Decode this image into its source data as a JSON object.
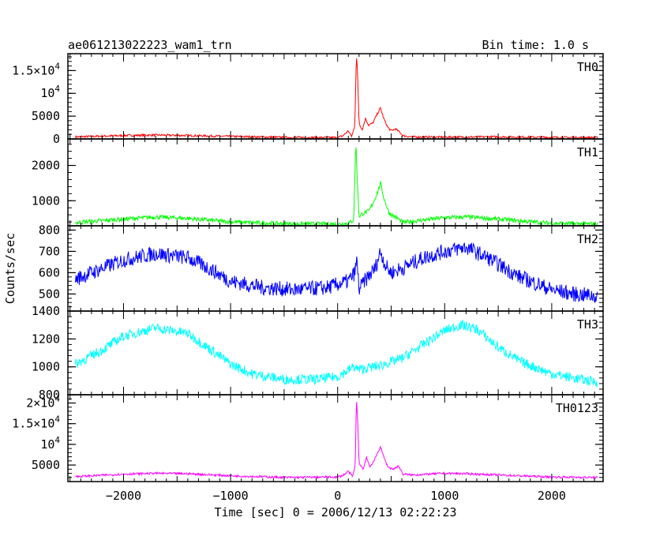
{
  "header": {
    "title": "ae061213022223_wam1_trn",
    "bin_time": "Bin time: 1.0 s"
  },
  "chart_data": {
    "type": "line",
    "xlabel": "Time [sec] 0 = 2006/12/13 02:22:23",
    "ylabel": "Counts/sec",
    "xlim": [
      -2520,
      2480
    ],
    "x_ticks": [
      -2000,
      -1000,
      0,
      1000,
      2000
    ],
    "x_tick_labels": [
      "−2000",
      "−1000",
      "0",
      "1000",
      "2000"
    ],
    "grid": false,
    "panels": [
      {
        "label": "TH0",
        "color": "#ff0000",
        "ylim": [
          0,
          18700
        ],
        "y_ticks": [
          0,
          5000,
          10000,
          15000
        ],
        "y_tick_labels": [
          {
            "mant": "0"
          },
          {
            "mant": "5000"
          },
          {
            "mant": "10",
            "exp": "4"
          },
          {
            "mant": "1.5×10",
            "exp": "4"
          }
        ],
        "points": [
          [
            -2450,
            450
          ],
          [
            -2000,
            750
          ],
          [
            -1700,
            850
          ],
          [
            -1400,
            750
          ],
          [
            -1000,
            550
          ],
          [
            -500,
            350
          ],
          [
            0,
            300
          ],
          [
            50,
            700
          ],
          [
            100,
            1800
          ],
          [
            130,
            500
          ],
          [
            160,
            2800
          ],
          [
            175,
            18500
          ],
          [
            185,
            15000
          ],
          [
            200,
            3500
          ],
          [
            230,
            2000
          ],
          [
            260,
            4500
          ],
          [
            290,
            3000
          ],
          [
            330,
            3500
          ],
          [
            370,
            5500
          ],
          [
            400,
            6800
          ],
          [
            430,
            4500
          ],
          [
            470,
            2500
          ],
          [
            500,
            1800
          ],
          [
            540,
            2200
          ],
          [
            580,
            1500
          ],
          [
            610,
            700
          ],
          [
            700,
            450
          ],
          [
            1000,
            400
          ],
          [
            1500,
            450
          ],
          [
            2000,
            350
          ],
          [
            2430,
            300
          ]
        ]
      },
      {
        "label": "TH1",
        "color": "#00ff00",
        "ylim": [
          290,
          2750
        ],
        "y_ticks": [
          1000,
          2000
        ],
        "y_tick_labels": [
          {
            "mant": "1000"
          },
          {
            "mant": "2000"
          }
        ],
        "points": [
          [
            -2450,
            380
          ],
          [
            -2000,
            480
          ],
          [
            -1700,
            540
          ],
          [
            -1400,
            500
          ],
          [
            -1000,
            400
          ],
          [
            -500,
            350
          ],
          [
            0,
            340
          ],
          [
            100,
            360
          ],
          [
            150,
            450
          ],
          [
            170,
            2700
          ],
          [
            180,
            1800
          ],
          [
            200,
            550
          ],
          [
            240,
            650
          ],
          [
            290,
            700
          ],
          [
            340,
            1000
          ],
          [
            380,
            1300
          ],
          [
            400,
            1500
          ],
          [
            430,
            1100
          ],
          [
            480,
            650
          ],
          [
            560,
            500
          ],
          [
            610,
            380
          ],
          [
            700,
            420
          ],
          [
            1000,
            520
          ],
          [
            1200,
            540
          ],
          [
            1500,
            480
          ],
          [
            2000,
            360
          ],
          [
            2430,
            340
          ]
        ]
      },
      {
        "label": "TH2",
        "color": "#0000ff",
        "ylim": [
          420,
          820
        ],
        "y_ticks": [
          500,
          600,
          700,
          800
        ],
        "y_tick_labels": [
          {
            "mant": "500"
          },
          {
            "mant": "600"
          },
          {
            "mant": "700"
          },
          {
            "mant": "800"
          }
        ],
        "points": [
          [
            -2450,
            570
          ],
          [
            -2200,
            620
          ],
          [
            -2000,
            660
          ],
          [
            -1700,
            690
          ],
          [
            -1400,
            670
          ],
          [
            -1200,
            620
          ],
          [
            -1000,
            560
          ],
          [
            -700,
            530
          ],
          [
            -400,
            520
          ],
          [
            -100,
            530
          ],
          [
            100,
            560
          ],
          [
            160,
            600
          ],
          [
            180,
            660
          ],
          [
            200,
            520
          ],
          [
            250,
            560
          ],
          [
            300,
            590
          ],
          [
            350,
            620
          ],
          [
            400,
            700
          ],
          [
            450,
            630
          ],
          [
            500,
            600
          ],
          [
            600,
            620
          ],
          [
            800,
            670
          ],
          [
            1000,
            700
          ],
          [
            1200,
            720
          ],
          [
            1400,
            670
          ],
          [
            1700,
            580
          ],
          [
            2000,
            520
          ],
          [
            2200,
            500
          ],
          [
            2430,
            490
          ]
        ]
      },
      {
        "label": "TH3",
        "color": "#00ffff",
        "ylim": [
          800,
          1400
        ],
        "y_ticks": [
          800,
          1000,
          1200,
          1400
        ],
        "y_tick_labels": [
          {
            "mant": "800"
          },
          {
            "mant": "1000"
          },
          {
            "mant": "1200"
          },
          {
            "mant": "1400"
          }
        ],
        "points": [
          [
            -2450,
            1020
          ],
          [
            -2200,
            1120
          ],
          [
            -2000,
            1220
          ],
          [
            -1700,
            1280
          ],
          [
            -1400,
            1240
          ],
          [
            -1200,
            1130
          ],
          [
            -1000,
            1020
          ],
          [
            -800,
            950
          ],
          [
            -500,
            910
          ],
          [
            -200,
            910
          ],
          [
            0,
            930
          ],
          [
            150,
            1000
          ],
          [
            200,
            980
          ],
          [
            400,
            1010
          ],
          [
            600,
            1060
          ],
          [
            800,
            1160
          ],
          [
            1000,
            1260
          ],
          [
            1150,
            1300
          ],
          [
            1300,
            1270
          ],
          [
            1500,
            1140
          ],
          [
            1700,
            1040
          ],
          [
            2000,
            950
          ],
          [
            2200,
            920
          ],
          [
            2430,
            890
          ]
        ]
      },
      {
        "label": "TH0123",
        "color": "#ff00ff",
        "ylim": [
          1000,
          22000
        ],
        "y_ticks": [
          5000,
          10000,
          15000,
          20000
        ],
        "y_tick_labels": [
          {
            "mant": "5000"
          },
          {
            "mant": "10",
            "exp": "4"
          },
          {
            "mant": "1.5×10",
            "exp": "4"
          },
          {
            "mant": "2×10",
            "exp": "4"
          }
        ],
        "points": [
          [
            -2450,
            2200
          ],
          [
            -2000,
            2800
          ],
          [
            -1700,
            3000
          ],
          [
            -1400,
            2900
          ],
          [
            -1000,
            2400
          ],
          [
            -500,
            2000
          ],
          [
            0,
            2100
          ],
          [
            50,
            2500
          ],
          [
            100,
            3500
          ],
          [
            140,
            2200
          ],
          [
            165,
            5000
          ],
          [
            175,
            21500
          ],
          [
            185,
            17000
          ],
          [
            200,
            5500
          ],
          [
            240,
            4000
          ],
          [
            270,
            7000
          ],
          [
            300,
            4500
          ],
          [
            350,
            6500
          ],
          [
            400,
            9500
          ],
          [
            430,
            7000
          ],
          [
            470,
            4500
          ],
          [
            520,
            4000
          ],
          [
            570,
            4800
          ],
          [
            610,
            2800
          ],
          [
            700,
            2600
          ],
          [
            1000,
            3000
          ],
          [
            1200,
            2900
          ],
          [
            1500,
            2600
          ],
          [
            2000,
            2100
          ],
          [
            2430,
            2000
          ]
        ]
      }
    ]
  }
}
